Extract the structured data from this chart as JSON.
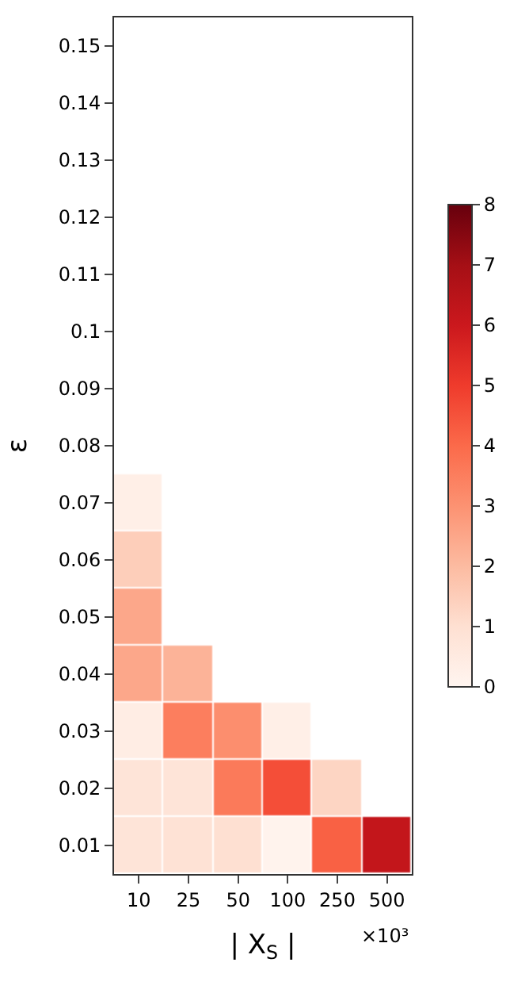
{
  "chart_data": {
    "type": "heatmap",
    "xlabel": "| X$_{S}$ |",
    "ylabel": "ε",
    "categories": [
      "10",
      "25",
      "50",
      "100",
      "250",
      "500"
    ],
    "y_categories": [
      "0.15",
      "0.14",
      "0.13",
      "0.12",
      "0.11",
      "0.1",
      "0.09",
      "0.08",
      "0.07",
      "0.06",
      "0.05",
      "0.04",
      "0.03",
      "0.02",
      "0.01"
    ],
    "cells": [
      [
        null,
        null,
        null,
        null,
        null,
        null
      ],
      [
        null,
        null,
        null,
        null,
        null,
        null
      ],
      [
        null,
        null,
        null,
        null,
        null,
        null
      ],
      [
        null,
        null,
        null,
        null,
        null,
        null
      ],
      [
        null,
        null,
        null,
        null,
        null,
        null
      ],
      [
        null,
        null,
        null,
        null,
        null,
        null
      ],
      [
        null,
        null,
        null,
        null,
        null,
        null
      ],
      [
        null,
        null,
        null,
        null,
        null,
        null
      ],
      [
        0.3,
        null,
        null,
        null,
        null,
        null
      ],
      [
        1.5,
        null,
        null,
        null,
        null,
        null
      ],
      [
        2.5,
        null,
        null,
        null,
        null,
        null
      ],
      [
        2.5,
        2.2,
        null,
        null,
        null,
        null
      ],
      [
        0.4,
        3.5,
        3.1,
        0.3,
        null,
        null
      ],
      [
        0.8,
        0.8,
        3.6,
        4.6,
        1.3,
        null
      ],
      [
        0.8,
        0.9,
        1.0,
        0.1,
        4.2,
        6.2
      ]
    ],
    "clim": [
      0,
      8
    ],
    "cticks": [
      0,
      1,
      2,
      3,
      4,
      5,
      6,
      7,
      8
    ],
    "annotations": [
      "×10³"
    ]
  }
}
